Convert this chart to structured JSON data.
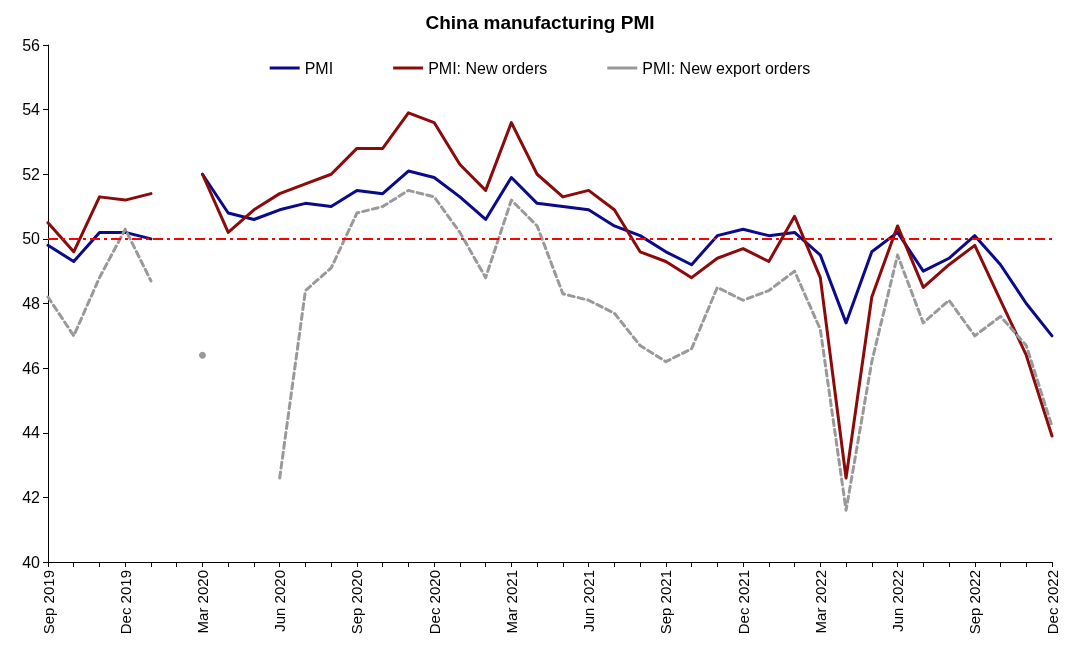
{
  "chart_data": {
    "type": "line",
    "title": "China manufacturing PMI",
    "categories": [
      "Sep 2019",
      null,
      null,
      "Dec 2019",
      null,
      null,
      "Mar 2020",
      null,
      null,
      "Jun 2020",
      null,
      null,
      "Sep 2020",
      null,
      null,
      "Dec 2020",
      null,
      null,
      "Mar 2021",
      null,
      null,
      "Jun 2021",
      null,
      null,
      "Sep 2021",
      null,
      null,
      "Dec 2021",
      null,
      null,
      "Mar 2022",
      null,
      null,
      "Jun 2022",
      null,
      null,
      "Sep 2022",
      null,
      null,
      "Dec 2022"
    ],
    "series": [
      {
        "name": "PMI",
        "color": "#0a0a8a",
        "line_style": "solid",
        "values": [
          49.8,
          49.3,
          50.2,
          50.2,
          50.0,
          null,
          52.0,
          50.8,
          50.6,
          50.9,
          51.1,
          51.0,
          51.5,
          51.4,
          52.1,
          51.9,
          51.3,
          50.6,
          51.9,
          51.1,
          51.0,
          50.9,
          50.4,
          50.1,
          49.6,
          49.2,
          50.1,
          50.3,
          50.1,
          50.2,
          49.5,
          47.4,
          49.6,
          50.2,
          49.0,
          49.4,
          50.1,
          49.2,
          48.0,
          47.0
        ]
      },
      {
        "name": "PMI: New orders",
        "color": "#8b0a0a",
        "line_style": "solid",
        "values": [
          50.5,
          49.6,
          51.3,
          51.2,
          51.4,
          null,
          52.0,
          50.2,
          50.9,
          51.4,
          51.7,
          52.0,
          52.8,
          52.8,
          53.9,
          53.6,
          52.3,
          51.5,
          53.6,
          52.0,
          51.3,
          51.5,
          50.9,
          49.6,
          49.3,
          48.8,
          49.4,
          49.7,
          49.3,
          50.7,
          48.8,
          42.6,
          48.2,
          50.4,
          48.5,
          49.2,
          49.8,
          48.1,
          46.4,
          43.9
        ]
      },
      {
        "name": "PMI: New export orders",
        "color": "#999999",
        "line_style": "dashed",
        "values": [
          48.2,
          47.0,
          48.8,
          50.3,
          48.7,
          null,
          46.4,
          null,
          null,
          42.6,
          48.4,
          49.1,
          50.8,
          51.0,
          51.5,
          51.3,
          50.2,
          48.8,
          51.2,
          50.4,
          48.3,
          48.1,
          47.7,
          46.7,
          46.2,
          46.6,
          48.5,
          48.1,
          48.4,
          49.0,
          47.2,
          41.6,
          46.2,
          49.5,
          47.4,
          48.1,
          47.0,
          47.6,
          46.7,
          44.2
        ]
      }
    ],
    "ylim": [
      40,
      56
    ],
    "yticks": [
      40,
      42,
      44,
      46,
      48,
      50,
      52,
      54,
      56
    ],
    "ref_lines": [
      {
        "axis": "y",
        "value": 50,
        "color": "#ff0000",
        "line_style": "dashed"
      }
    ],
    "grid": false,
    "legend": "top",
    "marker": "none"
  }
}
